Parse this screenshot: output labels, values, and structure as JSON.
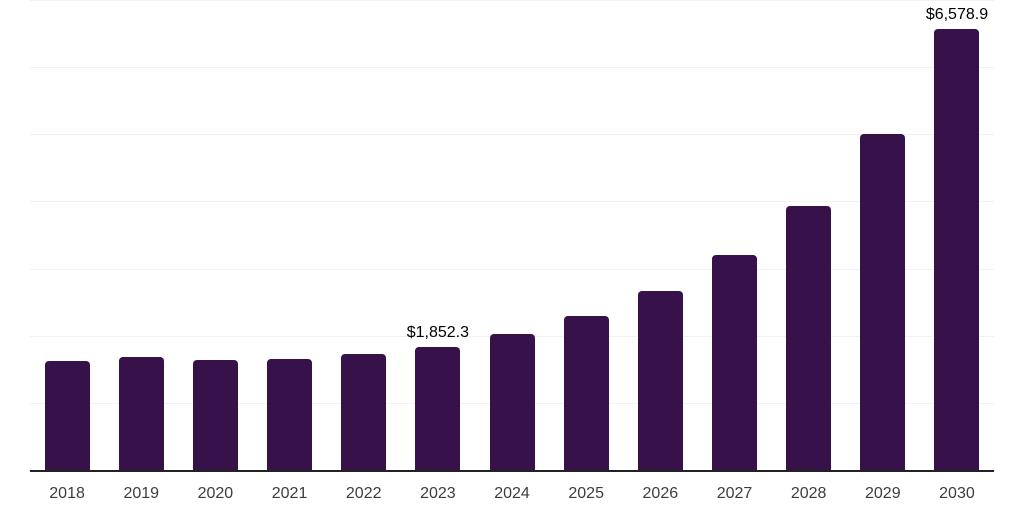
{
  "chart_data": {
    "type": "bar",
    "title": "",
    "xlabel": "",
    "ylabel": "",
    "categories": [
      "2018",
      "2019",
      "2020",
      "2021",
      "2022",
      "2023",
      "2024",
      "2025",
      "2026",
      "2027",
      "2028",
      "2029",
      "2030"
    ],
    "values": [
      1635,
      1700,
      1655,
      1670,
      1740,
      1852.3,
      2035,
      2310,
      2675,
      3220,
      3950,
      5020,
      6578.9
    ],
    "labeled_points": [
      {
        "category": "2023",
        "label": "$1,852.3"
      },
      {
        "category": "2030",
        "label": "$6,578.9"
      }
    ],
    "ylim": [
      0,
      7000
    ],
    "gridline_interval": 1000,
    "grid": true,
    "legend": false,
    "y_axis_tick_labels_visible": false
  },
  "colors": {
    "bar": "#36114a",
    "gridline": "#f2f2f2",
    "axis_line": "#222222",
    "tick_label": "#3d3d3d",
    "data_label": "#000000",
    "background": "#ffffff"
  }
}
